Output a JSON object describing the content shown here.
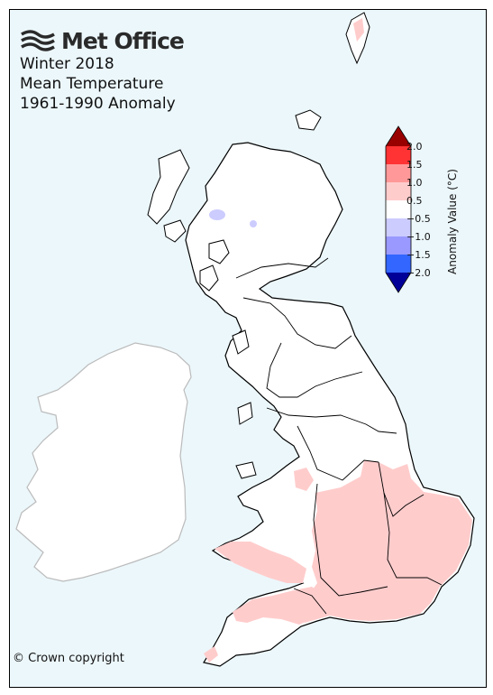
{
  "header": {
    "logo_text": "Met Office",
    "title_line1": "Winter 2018",
    "title_line2": "Mean Temperature",
    "title_line3": "1961-1990 Anomaly"
  },
  "footer": {
    "copyright": "© Crown copyright"
  },
  "legend": {
    "title": "Anomaly Value (°C)",
    "ticks": [
      "2.0",
      "1.5",
      "1.0",
      "0.5",
      "−0.5",
      "−1.0",
      "−1.5",
      "−2.0"
    ],
    "bins": [
      {
        "range": "> 2.0",
        "color": "#990000"
      },
      {
        "range": "1.5 to 2.0",
        "color": "#ff3333"
      },
      {
        "range": "1.0 to 1.5",
        "color": "#ff9999"
      },
      {
        "range": "0.5 to 1.0",
        "color": "#ffcccc"
      },
      {
        "range": "-0.5 to 0.5",
        "color": "#ffffff"
      },
      {
        "range": "-1.0 to -0.5",
        "color": "#ccccff"
      },
      {
        "range": "-1.5 to -1.0",
        "color": "#9999ff"
      },
      {
        "range": "-2.0 to -1.5",
        "color": "#3366ff"
      },
      {
        "range": "< -2.0",
        "color": "#000099"
      }
    ]
  },
  "map": {
    "sea_color": "#ecf7fb",
    "land_color": "#ffffff",
    "warm_anomaly_color": "#ffcccc",
    "cool_anomaly_color": "#ccccff",
    "ireland_outline_color": "#bbbbbb"
  }
}
